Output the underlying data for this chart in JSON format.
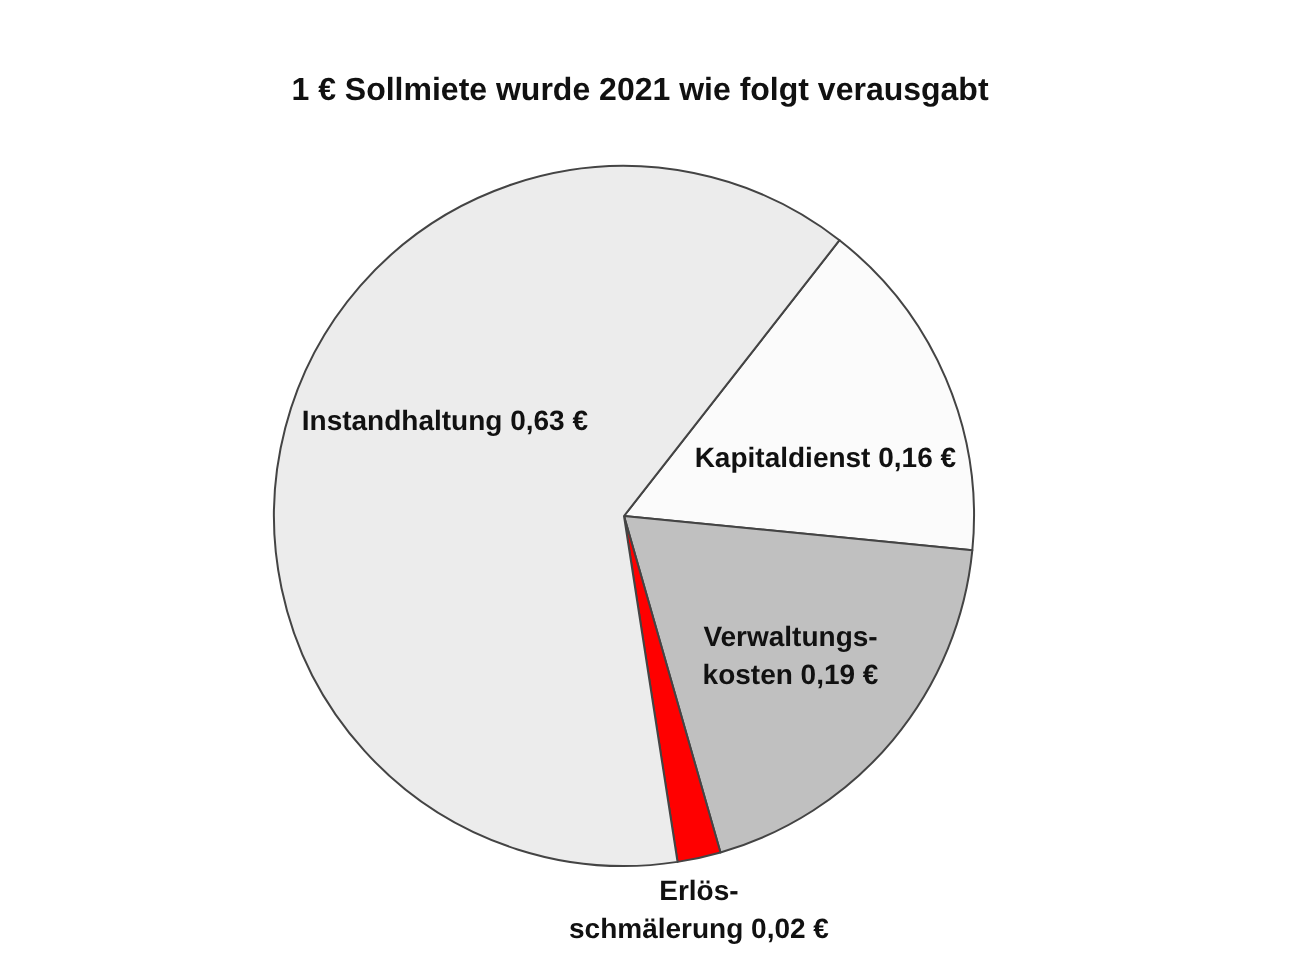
{
  "chart_data": {
    "type": "pie",
    "title": "1 € Sollmiete wurde 2021 wie folgt verausgabt",
    "categories": [
      "Kapitaldienst",
      "Verwaltungs-\nkosten",
      "Erlös-\nschmälerung",
      "Instandhaltung"
    ],
    "values": [
      0.16,
      0.19,
      0.02,
      0.63
    ],
    "colors": [
      "#fbfbfb",
      "#c0c0c0",
      "#ff0000",
      "#ececec"
    ],
    "value_labels": [
      "0,16 €",
      "0,19 €",
      "0,02 €",
      "0,63 €"
    ]
  }
}
